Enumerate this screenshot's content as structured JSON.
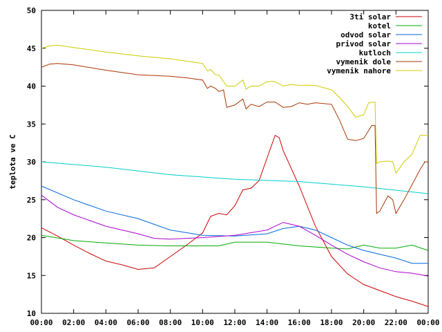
{
  "chart_data": {
    "type": "line",
    "title": "",
    "xlabel": "",
    "ylabel": "teplota ve C",
    "ylim": [
      10,
      50
    ],
    "xlim": [
      0,
      24
    ],
    "grid": false,
    "legend_position": "top-right",
    "x_tick_labels": [
      "00:00",
      "02:00",
      "04:00",
      "06:00",
      "08:00",
      "10:00",
      "12:00",
      "14:00",
      "16:00",
      "18:00",
      "20:00",
      "22:00",
      "00:00"
    ],
    "y_ticks": [
      10,
      15,
      20,
      25,
      30,
      35,
      40,
      45,
      50
    ],
    "series": [
      {
        "name": "3ti solar",
        "color": "#cc0000",
        "points": [
          [
            0,
            21.3
          ],
          [
            1,
            20.2
          ],
          [
            2,
            19.0
          ],
          [
            3,
            17.9
          ],
          [
            4,
            16.9
          ],
          [
            5,
            16.4
          ],
          [
            6,
            15.8
          ],
          [
            7,
            16.0
          ],
          [
            8,
            17.5
          ],
          [
            9,
            19.0
          ],
          [
            10,
            20.6
          ],
          [
            10.5,
            22.8
          ],
          [
            11,
            23.2
          ],
          [
            11.5,
            23.0
          ],
          [
            12,
            24.2
          ],
          [
            12.5,
            26.3
          ],
          [
            13,
            26.5
          ],
          [
            13.5,
            27.5
          ],
          [
            14,
            30.5
          ],
          [
            14.5,
            33.5
          ],
          [
            14.75,
            33.2
          ],
          [
            15,
            31.5
          ],
          [
            16,
            26.8
          ],
          [
            17,
            21.5
          ],
          [
            18,
            17.5
          ],
          [
            19,
            15.2
          ],
          [
            20,
            13.8
          ],
          [
            21,
            13.0
          ],
          [
            22,
            12.2
          ],
          [
            23,
            11.6
          ],
          [
            24,
            10.9
          ]
        ]
      },
      {
        "name": "kotel",
        "color": "#00aa00",
        "points": [
          [
            0,
            20.3
          ],
          [
            2,
            19.6
          ],
          [
            4,
            19.3
          ],
          [
            6,
            19.0
          ],
          [
            8,
            18.9
          ],
          [
            10,
            18.9
          ],
          [
            11,
            18.9
          ],
          [
            12,
            19.4
          ],
          [
            14,
            19.4
          ],
          [
            16,
            18.9
          ],
          [
            18,
            18.6
          ],
          [
            19,
            18.5
          ],
          [
            20,
            19.0
          ],
          [
            21,
            18.6
          ],
          [
            22,
            18.6
          ],
          [
            23,
            19.0
          ],
          [
            24,
            18.3
          ]
        ]
      },
      {
        "name": "odvod solar",
        "color": "#0066dd",
        "points": [
          [
            0,
            26.8
          ],
          [
            2,
            25.0
          ],
          [
            4,
            23.5
          ],
          [
            6,
            22.5
          ],
          [
            8,
            21.0
          ],
          [
            10,
            20.3
          ],
          [
            12,
            20.2
          ],
          [
            14,
            20.5
          ],
          [
            15,
            21.2
          ],
          [
            16,
            21.5
          ],
          [
            17,
            21.0
          ],
          [
            18,
            20.0
          ],
          [
            19,
            19.0
          ],
          [
            20,
            18.3
          ],
          [
            21,
            17.8
          ],
          [
            22,
            17.3
          ],
          [
            23,
            16.6
          ],
          [
            24,
            16.6
          ]
        ]
      },
      {
        "name": "privod solar",
        "color": "#aa00cc",
        "points": [
          [
            0,
            25.6
          ],
          [
            1,
            24.0
          ],
          [
            2,
            23.0
          ],
          [
            4,
            21.5
          ],
          [
            6,
            20.5
          ],
          [
            7,
            19.9
          ],
          [
            8,
            19.8
          ],
          [
            10,
            20.0
          ],
          [
            12,
            20.3
          ],
          [
            14,
            21.0
          ],
          [
            14.5,
            21.5
          ],
          [
            15,
            22.0
          ],
          [
            16,
            21.5
          ],
          [
            17,
            20.3
          ],
          [
            18,
            19.0
          ],
          [
            19,
            17.8
          ],
          [
            20,
            16.8
          ],
          [
            21,
            16.0
          ],
          [
            22,
            15.5
          ],
          [
            23,
            15.3
          ],
          [
            24,
            14.9
          ]
        ]
      },
      {
        "name": "kutloch",
        "color": "#00cccc",
        "points": [
          [
            0,
            30.0
          ],
          [
            4,
            29.3
          ],
          [
            8,
            28.3
          ],
          [
            12,
            27.7
          ],
          [
            16,
            27.4
          ],
          [
            20,
            26.7
          ],
          [
            24,
            25.8
          ]
        ]
      },
      {
        "name": "vymenik dole",
        "color": "#aa3300",
        "points": [
          [
            0,
            42.5
          ],
          [
            0.5,
            42.9
          ],
          [
            1,
            43.0
          ],
          [
            2,
            42.8
          ],
          [
            4,
            42.1
          ],
          [
            6,
            41.5
          ],
          [
            8,
            41.3
          ],
          [
            9,
            41.1
          ],
          [
            10,
            40.8
          ],
          [
            10.3,
            39.7
          ],
          [
            10.5,
            40.0
          ],
          [
            10.8,
            39.7
          ],
          [
            11,
            39.3
          ],
          [
            11.3,
            39.5
          ],
          [
            11.5,
            37.2
          ],
          [
            12,
            37.5
          ],
          [
            12.5,
            38.3
          ],
          [
            12.7,
            37.0
          ],
          [
            13,
            37.6
          ],
          [
            13.5,
            37.3
          ],
          [
            14,
            37.9
          ],
          [
            14.5,
            37.9
          ],
          [
            15,
            37.2
          ],
          [
            15.5,
            37.3
          ],
          [
            16,
            37.8
          ],
          [
            16.5,
            37.6
          ],
          [
            17,
            37.8
          ],
          [
            18,
            37.6
          ],
          [
            18.5,
            35.5
          ],
          [
            19,
            33.0
          ],
          [
            19.5,
            32.8
          ],
          [
            20,
            33.1
          ],
          [
            20.5,
            34.8
          ],
          [
            20.7,
            34.8
          ],
          [
            20.8,
            23.2
          ],
          [
            21,
            23.5
          ],
          [
            21.5,
            25.5
          ],
          [
            21.8,
            25.0
          ],
          [
            22,
            23.2
          ],
          [
            22.5,
            25.0
          ],
          [
            23,
            27.0
          ],
          [
            23.5,
            29.0
          ],
          [
            23.8,
            30.0
          ],
          [
            24,
            30.0
          ]
        ]
      },
      {
        "name": "vymenik nahore",
        "color": "#cccc00",
        "points": [
          [
            0,
            45.0
          ],
          [
            0.5,
            45.3
          ],
          [
            1,
            45.4
          ],
          [
            2,
            45.1
          ],
          [
            4,
            44.5
          ],
          [
            6,
            44.0
          ],
          [
            8,
            43.6
          ],
          [
            9,
            43.3
          ],
          [
            10,
            43.0
          ],
          [
            10.3,
            42.0
          ],
          [
            10.5,
            42.2
          ],
          [
            10.8,
            41.5
          ],
          [
            11,
            41.5
          ],
          [
            11.5,
            40.0
          ],
          [
            12,
            40.0
          ],
          [
            12.5,
            40.8
          ],
          [
            12.7,
            39.6
          ],
          [
            13,
            40.0
          ],
          [
            13.5,
            40.0
          ],
          [
            14,
            40.6
          ],
          [
            14.5,
            40.6
          ],
          [
            15,
            40.0
          ],
          [
            15.5,
            40.2
          ],
          [
            16,
            40.1
          ],
          [
            17,
            40.1
          ],
          [
            18,
            39.5
          ],
          [
            18.5,
            38.5
          ],
          [
            19,
            37.3
          ],
          [
            19.5,
            35.9
          ],
          [
            20,
            36.2
          ],
          [
            20.3,
            37.8
          ],
          [
            20.7,
            37.9
          ],
          [
            20.8,
            29.8
          ],
          [
            21,
            30.0
          ],
          [
            21.5,
            30.1
          ],
          [
            21.8,
            30.0
          ],
          [
            22,
            28.5
          ],
          [
            22.5,
            30.0
          ],
          [
            23,
            31.0
          ],
          [
            23.5,
            33.5
          ],
          [
            24,
            33.5
          ]
        ]
      }
    ]
  }
}
